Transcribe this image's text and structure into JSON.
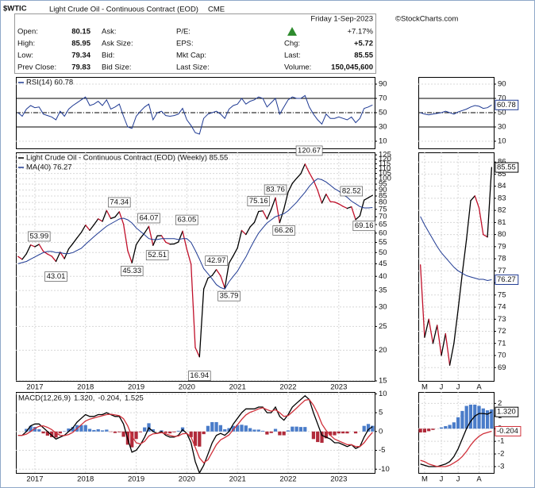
{
  "header": {
    "symbol": "$WTIC",
    "name": "Light Crude Oil - Continuous Contract (EOD)",
    "exchange": "CME",
    "date": "Friday  1-Sep-2023",
    "source": "©StockCharts.com",
    "quote": {
      "col1": [
        [
          "Open:",
          "80.15"
        ],
        [
          "High:",
          "85.95"
        ],
        [
          "Low:",
          "79.34"
        ],
        [
          "Prev Close:",
          "79.83"
        ]
      ],
      "col2": [
        "Ask:",
        "Ask Size:",
        "Bid:",
        "Bid Size:"
      ],
      "col3": [
        "P/E:",
        "EPS:",
        "Mkt Cap:",
        "Last Size:"
      ],
      "change_pct": "+7.17%",
      "col4": [
        [
          "Chg:",
          "+5.72"
        ],
        [
          "Last:",
          "85.55"
        ],
        [
          "Volume:",
          "150,045,600"
        ]
      ]
    }
  },
  "chart_data": [
    {
      "type": "line",
      "ylim": [
        0,
        100
      ],
      "yticks": [
        10,
        30,
        50,
        70,
        90
      ],
      "grid": true,
      "reference_lines": [
        70,
        50,
        30
      ],
      "series": [
        {
          "name": "RSI(14) 60.78",
          "color": "#1f3a93",
          "values": [
            50,
            45,
            55,
            60,
            57,
            58,
            48,
            46,
            44,
            40,
            52,
            45,
            55,
            60,
            64,
            68,
            72,
            60,
            62,
            66,
            60,
            68,
            55,
            58,
            62,
            45,
            30,
            28,
            45,
            52,
            58,
            62,
            40,
            50,
            52,
            46,
            45,
            46,
            48,
            56,
            40,
            32,
            22,
            20,
            42,
            48,
            50,
            52,
            48,
            42,
            55,
            60,
            62,
            70,
            62,
            66,
            68,
            72,
            70,
            58,
            64,
            70,
            48,
            58,
            68,
            72,
            70,
            70,
            74,
            58,
            48,
            40,
            34,
            48,
            42,
            42,
            44,
            42,
            40,
            44,
            36,
            42,
            56,
            58,
            60.78
          ]
        }
      ]
    },
    {
      "type": "line",
      "log_scale": true,
      "ylim": [
        15,
        128
      ],
      "yticks": [
        15,
        20,
        25,
        30,
        35,
        40,
        45,
        50,
        55,
        60,
        65,
        70,
        75,
        80,
        85,
        90,
        95,
        100,
        105,
        110,
        115,
        120,
        125
      ],
      "grid": true,
      "categories": [
        null,
        null,
        null,
        null,
        "2017",
        null,
        null,
        null,
        null,
        null,
        null,
        null,
        null,
        null,
        null,
        null,
        "2018",
        null,
        null,
        null,
        null,
        null,
        null,
        null,
        null,
        null,
        null,
        null,
        "2019",
        null,
        null,
        null,
        null,
        null,
        null,
        null,
        null,
        null,
        null,
        null,
        "2020",
        null,
        null,
        null,
        null,
        null,
        null,
        null,
        null,
        null,
        null,
        null,
        "2021",
        null,
        null,
        null,
        null,
        null,
        null,
        null,
        null,
        null,
        null,
        null,
        "2022",
        null,
        null,
        null,
        null,
        null,
        null,
        null,
        null,
        null,
        null,
        null,
        "2023",
        null,
        null,
        null,
        null,
        null,
        null,
        null,
        null
      ],
      "series": [
        {
          "name": "Light Crude Oil - Continuous Contract (EOD) (Weekly) 85.55",
          "color": "#000000",
          "up_color": "#000000",
          "down_color": "#c0102a",
          "values": [
            48.2,
            46.9,
            49.4,
            53.7,
            52.8,
            54.0,
            50.6,
            49.3,
            48.3,
            46.0,
            50.2,
            47.2,
            51.7,
            54.4,
            57.4,
            60.4,
            64.7,
            61.6,
            64.9,
            68.6,
            67.0,
            74.2,
            68.8,
            69.8,
            73.3,
            65.3,
            50.9,
            45.4,
            53.8,
            57.2,
            60.1,
            63.9,
            53.5,
            58.5,
            58.6,
            55.1,
            54.1,
            54.2,
            55.2,
            61.1,
            51.6,
            44.8,
            20.5,
            18.8,
            35.5,
            39.3,
            40.3,
            42.6,
            40.2,
            35.8,
            45.3,
            48.5,
            52.2,
            61.5,
            59.2,
            63.6,
            66.3,
            73.5,
            73.9,
            68.5,
            75.0,
            83.6,
            66.2,
            75.2,
            88.2,
            95.7,
            100.3,
            104.7,
            114.7,
            105.8,
            98.6,
            89.6,
            79.5,
            86.5,
            80.6,
            80.3,
            78.9,
            77.1,
            75.7,
            76.8,
            68.1,
            70.6,
            81.8,
            83.6,
            85.55
          ]
        },
        {
          "name": "MA(40) 76.27",
          "color": "#1f3a93",
          "values": [
            45,
            45.5,
            46,
            47,
            48,
            49,
            50,
            50.5,
            50.5,
            50,
            50,
            49.5,
            49.5,
            50,
            51,
            52,
            54,
            56,
            58,
            60,
            62,
            64,
            65.5,
            67,
            68.5,
            69,
            68,
            66,
            63,
            61,
            59,
            57,
            56.5,
            56.5,
            57,
            57,
            57,
            57,
            56.5,
            57,
            57,
            55,
            51,
            47,
            43,
            41,
            39,
            37,
            36,
            35.5,
            38,
            40,
            42,
            45,
            48,
            52,
            56,
            60,
            63,
            66,
            68,
            70,
            71,
            72,
            74,
            77,
            80,
            84,
            88,
            93,
            97,
            100,
            99,
            97,
            94,
            91,
            89,
            86,
            84,
            81,
            79,
            77,
            76,
            76,
            76.27
          ]
        }
      ],
      "annotations": [
        53.99,
        43.01,
        74.34,
        64.07,
        45.33,
        52.51,
        63.05,
        16.94,
        42.97,
        35.79,
        75.16,
        83.76,
        66.26,
        120.67,
        82.52,
        69.16
      ]
    },
    {
      "type": "macd",
      "ylim": [
        -11,
        10.5
      ],
      "yticks": [
        10,
        5,
        0,
        -5,
        -10
      ],
      "grid": true,
      "legend": [
        "MACD(12,26,9)",
        "1.320,",
        "-0.204,",
        "1.525"
      ],
      "categories": [
        null,
        null,
        null,
        null,
        "2017",
        null,
        null,
        null,
        null,
        null,
        null,
        null,
        null,
        null,
        null,
        null,
        "2018",
        null,
        null,
        null,
        null,
        null,
        null,
        null,
        null,
        null,
        null,
        null,
        "2019",
        null,
        null,
        null,
        null,
        null,
        null,
        null,
        null,
        null,
        null,
        null,
        "2020",
        null,
        null,
        null,
        null,
        null,
        null,
        null,
        null,
        null,
        null,
        null,
        "2021",
        null,
        null,
        null,
        null,
        null,
        null,
        null,
        null,
        null,
        null,
        null,
        "2022",
        null,
        null,
        null,
        null,
        null,
        null,
        null,
        null,
        null,
        null,
        null,
        "2023",
        null,
        null,
        null,
        null,
        null,
        null,
        null,
        null
      ],
      "series": [
        {
          "color": "#000000",
          "values": [
            -1,
            -1,
            0,
            1.5,
            2,
            2,
            1,
            0,
            -1,
            -2,
            -1.5,
            -1,
            0,
            1,
            2.5,
            3.5,
            4.5,
            4,
            4,
            4.5,
            4.5,
            5,
            4.5,
            4,
            4,
            2,
            -2,
            -5.5,
            -5,
            -3.5,
            -1.5,
            1,
            0,
            -0.5,
            0,
            -1,
            -1.5,
            -1.5,
            -1,
            0.5,
            -0.5,
            -3,
            -8,
            -11,
            -9,
            -6,
            -3,
            -1,
            -0.5,
            -1,
            0,
            2,
            3.5,
            5,
            6,
            6,
            6,
            6.5,
            6.5,
            5,
            5,
            6.5,
            4,
            3,
            4.5,
            6.5,
            7.5,
            8.5,
            9.5,
            8.5,
            5,
            2,
            -1,
            -1.5,
            -2,
            -3,
            -3,
            -3.5,
            -4,
            -3.5,
            -4.5,
            -4,
            -1.5,
            0.5,
            1.32
          ]
        },
        {
          "color": "#d0303a",
          "values": [
            -1,
            -1,
            -0.7,
            0,
            0.8,
            1.4,
            1.5,
            1.1,
            0.5,
            -0.4,
            -1,
            -1.1,
            -0.8,
            -0.2,
            0.8,
            1.8,
            2.8,
            3.3,
            3.6,
            3.9,
            4.2,
            4.5,
            4.6,
            4.4,
            4.2,
            3.4,
            1.5,
            -1.3,
            -3,
            -3.3,
            -2.6,
            -1.2,
            -0.6,
            -0.5,
            -0.3,
            -0.6,
            -1,
            -1.3,
            -1.2,
            -0.6,
            -0.5,
            -1.5,
            -4.2,
            -7,
            -8.3,
            -7.5,
            -5.5,
            -3.5,
            -2.2,
            -1.6,
            -0.9,
            0.5,
            1.8,
            3.2,
            4.4,
            5.1,
            5.5,
            6,
            6.3,
            5.8,
            5.4,
            5.8,
            5,
            4,
            4.2,
            5.2,
            6.2,
            7.3,
            8.3,
            8.5,
            7,
            4.8,
            2,
            0.3,
            -1,
            -2,
            -2.5,
            -3,
            -3.5,
            -3.5,
            -4,
            -4,
            -3,
            -1.5,
            -0.204
          ]
        },
        {
          "type": "bar",
          "color": "#4a7cc9",
          "negative_color": "#b02a3a",
          "values": [
            0,
            0,
            0.7,
            1.5,
            1.2,
            0.6,
            -0.5,
            -1.1,
            -1.5,
            -1.6,
            -0.5,
            0.1,
            0.8,
            1.2,
            1.7,
            1.7,
            1.7,
            0.7,
            0.4,
            0.6,
            0.3,
            0.5,
            -0.1,
            -0.4,
            -0.2,
            -1.4,
            -3.5,
            -4.2,
            -2,
            -0.2,
            1.1,
            2.2,
            0.6,
            0,
            0.3,
            -0.4,
            -0.5,
            -0.2,
            0.2,
            1.1,
            0,
            -1.5,
            -3.8,
            -4,
            -0.7,
            1.5,
            2.5,
            2.5,
            1.7,
            0.6,
            0.9,
            1.5,
            1.7,
            1.8,
            1.6,
            0.9,
            0.5,
            0.5,
            0.2,
            -0.8,
            -0.4,
            0.7,
            -1,
            -1,
            0.3,
            1.3,
            1.3,
            1.2,
            1.2,
            0,
            -2,
            -2.8,
            -3,
            -1.8,
            -1,
            -1,
            -0.5,
            -0.5,
            -0.5,
            0,
            -0.5,
            0,
            1.5,
            2,
            1.525
          ]
        }
      ]
    },
    {
      "type": "line",
      "ylim": [
        0,
        100
      ],
      "yticks": [
        10,
        30,
        50,
        70,
        90
      ],
      "grid": true,
      "reference_lines": [
        70,
        50,
        30
      ],
      "end_value_labels": true,
      "series": [
        {
          "color": "#1f3a93",
          "values": [
            50,
            48,
            47,
            48,
            49,
            50,
            52,
            50,
            48,
            51,
            53,
            55,
            58,
            60,
            59,
            56,
            57,
            60.78
          ]
        }
      ]
    },
    {
      "type": "line",
      "ylim": [
        67.9,
        86.8
      ],
      "yticks": [
        69,
        70,
        71,
        72,
        73,
        74,
        75,
        76,
        77,
        78,
        79,
        80,
        81,
        82,
        83,
        84,
        85,
        86
      ],
      "grid": true,
      "end_value_labels": true,
      "categories": [
        null,
        "M",
        null,
        null,
        null,
        "J",
        null,
        null,
        null,
        "J",
        null,
        null,
        null,
        null,
        "A",
        null,
        null,
        null
      ],
      "series": [
        {
          "color": "#000000",
          "up_color": "#000000",
          "down_color": "#c0102a",
          "values": [
            77.5,
            71.5,
            73.0,
            71.0,
            72.5,
            70.0,
            71.8,
            69.2,
            71.0,
            73.8,
            76.8,
            79.6,
            82.8,
            83.2,
            82.2,
            80.0,
            79.8,
            85.55
          ]
        },
        {
          "color": "#1f3a93",
          "values": [
            81.5,
            80.8,
            80.2,
            79.6,
            79.0,
            78.5,
            78.1,
            77.7,
            77.3,
            77.0,
            76.8,
            76.6,
            76.5,
            76.4,
            76.3,
            76.3,
            76.2,
            76.27
          ]
        }
      ]
    },
    {
      "type": "macd",
      "ylim": [
        -3.5,
        2.9
      ],
      "yticks": [
        2,
        1,
        0,
        -1,
        -2,
        -3
      ],
      "grid": true,
      "end_value_labels": true,
      "categories": [
        null,
        "M",
        null,
        null,
        null,
        "J",
        null,
        null,
        null,
        "J",
        null,
        null,
        null,
        null,
        "A",
        null,
        null,
        null
      ],
      "series": [
        {
          "color": "#000000",
          "last_label": "1.320",
          "values": [
            -2.8,
            -2.9,
            -3,
            -3,
            -3,
            -2.9,
            -2.8,
            -2.6,
            -2.2,
            -1.6,
            -0.8,
            0,
            0.6,
            1.0,
            1.2,
            1.2,
            1.15,
            1.32
          ]
        },
        {
          "color": "#d0303a",
          "last_label": "-0.204",
          "values": [
            -2.5,
            -2.6,
            -2.8,
            -2.9,
            -3,
            -3,
            -3,
            -2.9,
            -2.7,
            -2.5,
            -2.2,
            -1.8,
            -1.3,
            -0.9,
            -0.6,
            -0.4,
            -0.3,
            -0.204
          ]
        },
        {
          "type": "bar",
          "color": "#4a7cc9",
          "negative_color": "#b02a3a",
          "values": [
            -0.3,
            -0.3,
            -0.2,
            -0.1,
            0,
            0.1,
            0.2,
            0.3,
            0.5,
            0.9,
            1.4,
            1.8,
            1.9,
            1.9,
            1.8,
            1.6,
            1.45,
            1.525
          ]
        }
      ]
    }
  ]
}
